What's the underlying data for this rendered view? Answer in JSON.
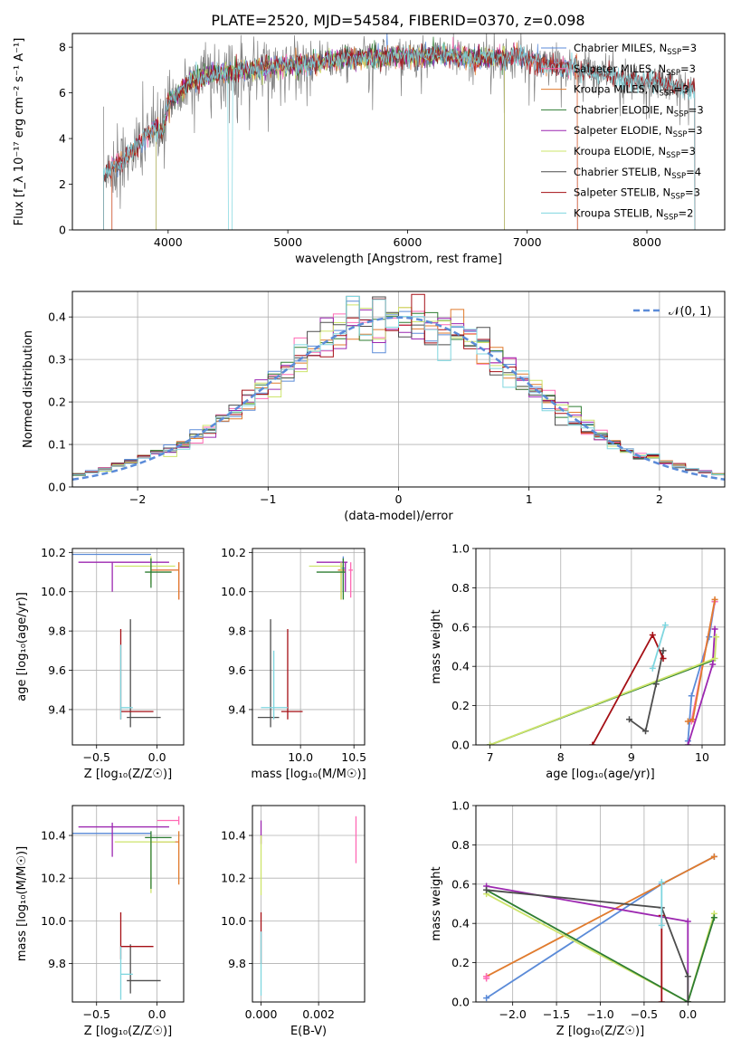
{
  "figure_title": "PLATE=2520, MJD=54584, FIBERID=0370, z=0.098",
  "colors": {
    "chabrier_miles": "#5b8bd8",
    "salpeter_miles": "#ff69b4",
    "kroupa_miles": "#e07b2e",
    "chabrier_elodie": "#2e7d32",
    "salpeter_elodie": "#9c27b0",
    "kroupa_elodie": "#cde46b",
    "chabrier_stelib": "#4d4d4d",
    "salpeter_stelib": "#a50f15",
    "kroupa_stelib": "#7fd6df"
  },
  "chart_data": [
    {
      "id": "spectrum",
      "type": "line",
      "xlabel": "wavelength [Angstrom, rest frame]",
      "ylabel": "Flux [f_λ 10⁻¹⁷ erg cm⁻² s⁻¹ A⁻¹]",
      "xlim": [
        3200,
        8650
      ],
      "ylim": [
        0,
        8.6
      ],
      "xticks": [
        "4000",
        "5000",
        "6000",
        "7000",
        "8000"
      ],
      "yticks": [
        "0",
        "2",
        "4",
        "6",
        "8"
      ],
      "legend_position": "right",
      "legend": [
        "Chabrier MILES, N_SSP=3",
        "Salpeter MILES, N_SSP=3",
        "Kroupa MILES, N_SSP=3",
        "Chabrier ELODIE, N_SSP=3",
        "Salpeter ELODIE, N_SSP=3",
        "Kroupa ELODIE, N_SSP=3",
        "Chabrier STELIB, N_SSP=4",
        "Salpeter STELIB, N_SSP=3",
        "Kroupa STELIB, N_SSP=2"
      ],
      "continuum_x": [
        3450,
        3500,
        3600,
        3700,
        3800,
        3900,
        3950,
        4000,
        4100,
        4200,
        4400,
        4600,
        4800,
        5000,
        5200,
        5500,
        5800,
        6000,
        6300,
        6600,
        6900,
        7200,
        7500,
        7800,
        8100,
        8400
      ],
      "continuum_y": [
        2.3,
        2.6,
        3.0,
        3.4,
        4.0,
        4.5,
        4.2,
        5.6,
        6.1,
        6.6,
        6.8,
        7.0,
        7.1,
        7.2,
        7.3,
        7.5,
        7.6,
        7.6,
        7.7,
        7.5,
        7.6,
        7.2,
        7.0,
        6.6,
        6.4,
        6.2
      ]
    },
    {
      "id": "residuals",
      "type": "step",
      "xlabel": "(data-model)/error",
      "ylabel": "Normed distribution",
      "xlim": [
        -2.5,
        2.5
      ],
      "ylim": [
        0,
        0.46
      ],
      "xticks": [
        "−2",
        "−1",
        "0",
        "1",
        "2"
      ],
      "yticks": [
        "0.0",
        "0.1",
        "0.2",
        "0.3",
        "0.4"
      ],
      "grid": true,
      "legend_position": "top-right",
      "gaussian_label": "𝒩(0, 1)",
      "bin_width": 0.1,
      "bin_start": -2.5
    },
    {
      "id": "age_vs_z",
      "type": "errorbar",
      "xlabel": "Z [log₁₀(Z/Z☉)]",
      "ylabel": "age  [log₁₀(age/yr)]",
      "xlim": [
        -0.7,
        0.22
      ],
      "ylim": [
        9.22,
        10.22
      ],
      "xticks": [
        "−0.5",
        "0.0"
      ],
      "yticks": [
        "9.4",
        "9.6",
        "9.8",
        "10.0",
        "10.2"
      ],
      "grid": true,
      "points": [
        {
          "color": "chabrier_miles",
          "x": -0.37,
          "xlo": -0.7,
          "xhi": -0.05,
          "y": 10.19,
          "ylo": 10.19,
          "yhi": 10.19
        },
        {
          "color": "salpeter_miles",
          "x": 0.18,
          "xlo": -0.05,
          "xhi": 0.18,
          "y": 10.11,
          "ylo": 9.96,
          "yhi": 10.15
        },
        {
          "color": "kroupa_miles",
          "x": 0.18,
          "xlo": -0.05,
          "xhi": 0.18,
          "y": 10.11,
          "ylo": 9.96,
          "yhi": 10.15
        },
        {
          "color": "salpeter_elodie",
          "x": -0.37,
          "xlo": -0.65,
          "xhi": 0.1,
          "y": 10.15,
          "ylo": 10.0,
          "yhi": 10.15
        },
        {
          "color": "kroupa_elodie",
          "x": -0.05,
          "xlo": -0.35,
          "xhi": 0.15,
          "y": 10.13,
          "ylo": 10.04,
          "yhi": 10.18
        },
        {
          "color": "chabrier_elodie",
          "x": -0.05,
          "xlo": -0.1,
          "xhi": 0.12,
          "y": 10.1,
          "ylo": 10.02,
          "yhi": 10.17
        },
        {
          "color": "chabrier_stelib",
          "x": -0.22,
          "xlo": -0.25,
          "xhi": 0.03,
          "y": 9.36,
          "ylo": 9.31,
          "yhi": 9.86
        },
        {
          "color": "salpeter_stelib",
          "x": -0.3,
          "xlo": -0.3,
          "xhi": -0.03,
          "y": 9.39,
          "ylo": 9.35,
          "yhi": 9.81
        },
        {
          "color": "kroupa_stelib",
          "x": -0.3,
          "xlo": -0.3,
          "xhi": -0.2,
          "y": 9.41,
          "ylo": 9.35,
          "yhi": 9.73
        }
      ]
    },
    {
      "id": "age_vs_mass",
      "type": "errorbar",
      "xlabel": "mass [log₁₀(M/M☉)]",
      "ylabel": "",
      "xlim": [
        9.55,
        10.6
      ],
      "ylim": [
        9.22,
        10.22
      ],
      "xticks": [
        "10.0",
        "10.5"
      ],
      "yticks": [
        "9.4",
        "9.6",
        "9.8",
        "10.0",
        "10.2"
      ],
      "grid": true,
      "points": [
        {
          "color": "salpeter_miles",
          "x": 10.47,
          "xlo": 10.45,
          "xhi": 10.49,
          "y": 10.11,
          "ylo": 9.97,
          "yhi": 10.15
        },
        {
          "color": "kroupa_miles",
          "x": 10.38,
          "xlo": 10.35,
          "xhi": 10.42,
          "y": 10.11,
          "ylo": 9.96,
          "yhi": 10.15
        },
        {
          "color": "chabrier_miles",
          "x": 10.4,
          "xlo": 10.38,
          "xhi": 10.42,
          "y": 10.12,
          "ylo": 10.0,
          "yhi": 10.18
        },
        {
          "color": "salpeter_elodie",
          "x": 10.42,
          "xlo": 10.15,
          "xhi": 10.44,
          "y": 10.15,
          "ylo": 10.0,
          "yhi": 10.15
        },
        {
          "color": "kroupa_elodie",
          "x": 10.38,
          "xlo": 10.08,
          "xhi": 10.4,
          "y": 10.13,
          "ylo": 9.96,
          "yhi": 10.15
        },
        {
          "color": "chabrier_elodie",
          "x": 10.4,
          "xlo": 10.15,
          "xhi": 10.42,
          "y": 10.1,
          "ylo": 9.96,
          "yhi": 10.17
        },
        {
          "color": "chabrier_stelib",
          "x": 9.72,
          "xlo": 9.6,
          "xhi": 9.8,
          "y": 9.36,
          "ylo": 9.31,
          "yhi": 9.86
        },
        {
          "color": "salpeter_stelib",
          "x": 9.88,
          "xlo": 9.82,
          "xhi": 10.02,
          "y": 9.39,
          "ylo": 9.35,
          "yhi": 9.81
        },
        {
          "color": "kroupa_stelib",
          "x": 9.75,
          "xlo": 9.63,
          "xhi": 9.88,
          "y": 9.41,
          "ylo": 9.35,
          "yhi": 9.7
        }
      ]
    },
    {
      "id": "mass_weight_vs_age",
      "type": "line",
      "xlabel": "age  [log₁₀(age/yr)]",
      "ylabel": "mass weight",
      "xlim": [
        6.8,
        10.32
      ],
      "ylim": [
        0,
        1.0
      ],
      "xticks": [
        "7",
        "8",
        "9",
        "10"
      ],
      "yticks": [
        "0.0",
        "0.2",
        "0.4",
        "0.6",
        "0.8",
        "1.0"
      ],
      "grid": true,
      "series": [
        {
          "color": "chabrier_miles",
          "x": [
            9.8,
            9.85,
            10.1,
            10.18
          ],
          "y": [
            0.02,
            0.25,
            0.55,
            0.73
          ]
        },
        {
          "color": "salpeter_miles",
          "x": [
            9.85,
            10.18
          ],
          "y": [
            0.12,
            0.73
          ]
        },
        {
          "color": "kroupa_miles",
          "x": [
            9.8,
            9.87,
            10.18
          ],
          "y": [
            0.12,
            0.13,
            0.74
          ]
        },
        {
          "color": "chabrier_elodie",
          "x": [
            7.0,
            10.15
          ],
          "y": [
            0.0,
            0.43
          ]
        },
        {
          "color": "salpeter_elodie",
          "x": [
            9.8,
            10.15,
            10.18
          ],
          "y": [
            0.0,
            0.41,
            0.59
          ]
        },
        {
          "color": "kroupa_elodie",
          "x": [
            7.0,
            10.18,
            10.2
          ],
          "y": [
            0.0,
            0.44,
            0.55
          ]
        },
        {
          "color": "chabrier_stelib",
          "x": [
            8.97,
            9.2,
            9.35,
            9.45
          ],
          "y": [
            0.13,
            0.07,
            0.31,
            0.48
          ]
        },
        {
          "color": "salpeter_stelib",
          "x": [
            8.45,
            9.3,
            9.45
          ],
          "y": [
            0.0,
            0.56,
            0.44
          ]
        },
        {
          "color": "kroupa_stelib",
          "x": [
            9.3,
            9.48
          ],
          "y": [
            0.39,
            0.61
          ]
        }
      ]
    },
    {
      "id": "mass_vs_z",
      "type": "errorbar",
      "xlabel": "Z [log₁₀(Z/Z☉)]",
      "ylabel": "mass [log₁₀(M/M☉)]",
      "xlim": [
        -0.7,
        0.22
      ],
      "ylim": [
        9.62,
        10.54
      ],
      "xticks": [
        "−0.5",
        "0.0"
      ],
      "yticks": [
        "9.8",
        "10.0",
        "10.2",
        "10.4"
      ],
      "grid": true,
      "points": [
        {
          "color": "salpeter_miles",
          "x": 0.18,
          "xlo": -0.0,
          "xhi": 0.18,
          "y": 10.47,
          "ylo": 10.45,
          "yhi": 10.49
        },
        {
          "color": "chabrier_miles",
          "x": -0.37,
          "xlo": -0.7,
          "xhi": -0.05,
          "y": 10.41,
          "ylo": 10.41,
          "yhi": 10.41
        },
        {
          "color": "kroupa_miles",
          "x": 0.18,
          "xlo": -0.05,
          "xhi": 0.18,
          "y": 10.37,
          "ylo": 10.17,
          "yhi": 10.42
        },
        {
          "color": "salpeter_elodie",
          "x": -0.37,
          "xlo": -0.65,
          "xhi": 0.1,
          "y": 10.44,
          "ylo": 10.3,
          "yhi": 10.46
        },
        {
          "color": "kroupa_elodie",
          "x": -0.05,
          "xlo": -0.35,
          "xhi": 0.15,
          "y": 10.37,
          "ylo": 10.13,
          "yhi": 10.4
        },
        {
          "color": "chabrier_elodie",
          "x": -0.05,
          "xlo": -0.1,
          "xhi": 0.12,
          "y": 10.39,
          "ylo": 10.15,
          "yhi": 10.42
        },
        {
          "color": "chabrier_stelib",
          "x": -0.22,
          "xlo": -0.25,
          "xhi": 0.03,
          "y": 9.72,
          "ylo": 9.66,
          "yhi": 9.89
        },
        {
          "color": "salpeter_stelib",
          "x": -0.3,
          "xlo": -0.3,
          "xhi": -0.03,
          "y": 9.88,
          "ylo": 9.82,
          "yhi": 10.04
        },
        {
          "color": "kroupa_stelib",
          "x": -0.3,
          "xlo": -0.3,
          "xhi": -0.2,
          "y": 9.75,
          "ylo": 9.63,
          "yhi": 9.88
        }
      ]
    },
    {
      "id": "mass_vs_ebv",
      "type": "errorbar",
      "xlabel": "E(B-V)",
      "ylabel": "",
      "xlim": [
        -0.0003,
        0.0036
      ],
      "ylim": [
        9.62,
        10.54
      ],
      "xticks": [
        "0.000",
        "0.002"
      ],
      "yticks": [
        "9.8",
        "10.0",
        "10.2",
        "10.4"
      ],
      "grid": true,
      "points": [
        {
          "color": "salpeter_miles",
          "x": 0.0033,
          "xlo": 0.0033,
          "xhi": 0.0033,
          "y": 10.38,
          "ylo": 10.27,
          "yhi": 10.49
        },
        {
          "color": "salpeter_elodie",
          "x": 0.0,
          "xlo": 0.0,
          "xhi": 0.0,
          "y": 10.44,
          "ylo": 10.36,
          "yhi": 10.47
        },
        {
          "color": "kroupa_elodie",
          "x": 0.0,
          "xlo": 0.0,
          "xhi": 0.0,
          "y": 10.3,
          "ylo": 10.12,
          "yhi": 10.4
        },
        {
          "color": "salpeter_stelib",
          "x": 0.0,
          "xlo": 0.0,
          "xhi": 0.0,
          "y": 9.88,
          "ylo": 9.8,
          "yhi": 10.04
        },
        {
          "color": "kroupa_stelib",
          "x": 0.0,
          "xlo": 0.0,
          "xhi": 0.0,
          "y": 9.75,
          "ylo": 9.65,
          "yhi": 9.95
        }
      ]
    },
    {
      "id": "mass_weight_vs_z",
      "type": "line",
      "xlabel": "Z [log₁₀(Z/Z☉)]",
      "ylabel": "mass weight",
      "xlim": [
        -2.42,
        0.42
      ],
      "ylim": [
        0,
        1.0
      ],
      "xticks": [
        "−2.0",
        "−1.5",
        "−1.0",
        "−0.5",
        "0.0"
      ],
      "yticks": [
        "0.0",
        "0.2",
        "0.4",
        "0.6",
        "0.8",
        "1.0"
      ],
      "grid": true,
      "series": [
        {
          "color": "chabrier_miles",
          "x": [
            -2.3,
            -0.3,
            0.3
          ],
          "y": [
            0.02,
            0.6,
            0.74
          ]
        },
        {
          "color": "kroupa_miles",
          "x": [
            -2.3,
            0.3
          ],
          "y": [
            0.13,
            0.74
          ]
        },
        {
          "color": "salpeter_miles",
          "x": [
            -2.3,
            -2.3
          ],
          "y": [
            0.12,
            0.13
          ]
        },
        {
          "color": "salpeter_elodie",
          "x": [
            -2.3,
            0.0,
            0.0
          ],
          "y": [
            0.59,
            0.41,
            0.0
          ]
        },
        {
          "color": "kroupa_elodie",
          "x": [
            -2.3,
            0.0,
            0.3
          ],
          "y": [
            0.55,
            0.0,
            0.45
          ]
        },
        {
          "color": "chabrier_elodie",
          "x": [
            -2.3,
            0.0,
            0.3
          ],
          "y": [
            0.57,
            0.0,
            0.43
          ]
        },
        {
          "color": "chabrier_stelib",
          "x": [
            -2.3,
            -0.3,
            0.0,
            0.0
          ],
          "y": [
            0.57,
            0.48,
            0.13,
            0.0
          ]
        },
        {
          "color": "salpeter_stelib",
          "x": [
            -0.3,
            -0.3
          ],
          "y": [
            0.0,
            0.44
          ]
        },
        {
          "color": "kroupa_stelib",
          "x": [
            -0.3,
            -0.3
          ],
          "y": [
            0.39,
            0.61
          ]
        }
      ]
    }
  ]
}
